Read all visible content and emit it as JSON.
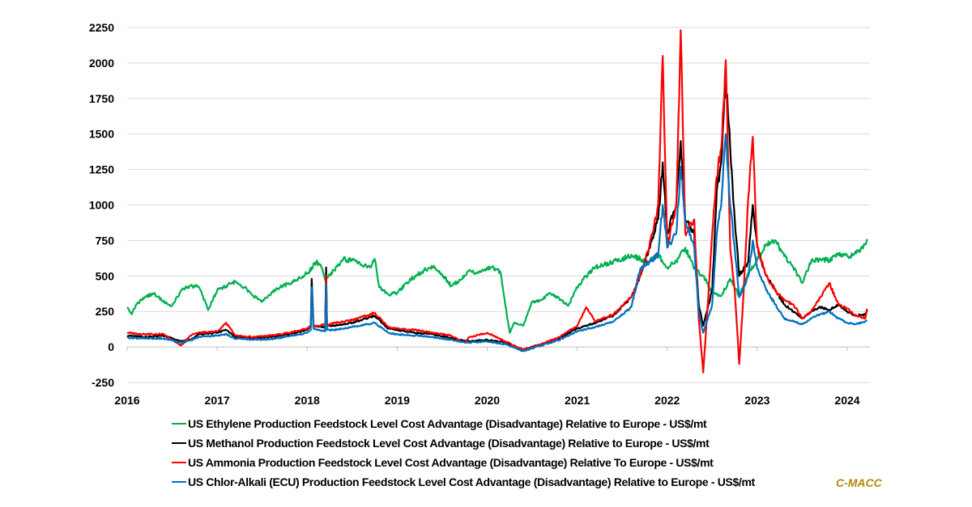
{
  "chart_data": {
    "type": "line",
    "title": "",
    "xlabel": "",
    "ylabel": "",
    "xlim": [
      2016,
      2024.25
    ],
    "ylim": [
      -250,
      2250
    ],
    "grid": true,
    "legend_placement": "bottom",
    "x_ticks": [
      "2016",
      "2017",
      "2018",
      "2019",
      "2020",
      "2021",
      "2022",
      "2023",
      "2024"
    ],
    "y_ticks": [
      "-250",
      "0",
      "250",
      "500",
      "750",
      "1000",
      "1250",
      "1500",
      "1750",
      "2000",
      "2250"
    ],
    "series": [
      {
        "name": "US Ethylene Production Feedstock Level Cost Advantage (Disadvantage) Relative to Europe - US$/mt",
        "color": "#00B050",
        "x": [
          2016.0,
          2016.05,
          2016.1,
          2016.2,
          2016.3,
          2016.4,
          2016.5,
          2016.6,
          2016.7,
          2016.8,
          2016.9,
          2017.0,
          2017.1,
          2017.2,
          2017.3,
          2017.4,
          2017.5,
          2017.6,
          2017.7,
          2017.8,
          2017.9,
          2018.0,
          2018.1,
          2018.15,
          2018.2,
          2018.3,
          2018.4,
          2018.5,
          2018.6,
          2018.7,
          2018.75,
          2018.8,
          2018.9,
          2019.0,
          2019.1,
          2019.2,
          2019.3,
          2019.4,
          2019.5,
          2019.6,
          2019.7,
          2019.8,
          2019.9,
          2020.0,
          2020.1,
          2020.15,
          2020.2,
          2020.25,
          2020.3,
          2020.4,
          2020.5,
          2020.6,
          2020.7,
          2020.8,
          2020.9,
          2021.0,
          2021.1,
          2021.2,
          2021.3,
          2021.4,
          2021.5,
          2021.6,
          2021.7,
          2021.8,
          2021.9,
          2022.0,
          2022.1,
          2022.2,
          2022.3,
          2022.4,
          2022.5,
          2022.6,
          2022.7,
          2022.8,
          2022.9,
          2023.0,
          2023.1,
          2023.2,
          2023.3,
          2023.4,
          2023.5,
          2023.6,
          2023.7,
          2023.8,
          2023.9,
          2024.0,
          2024.1,
          2024.2,
          2024.22
        ],
        "values": [
          280,
          230,
          300,
          350,
          380,
          320,
          290,
          400,
          430,
          420,
          260,
          400,
          430,
          460,
          420,
          360,
          320,
          380,
          420,
          450,
          480,
          520,
          600,
          580,
          470,
          540,
          620,
          610,
          580,
          560,
          620,
          420,
          370,
          380,
          450,
          500,
          540,
          560,
          510,
          430,
          470,
          540,
          520,
          560,
          550,
          520,
          300,
          100,
          170,
          150,
          320,
          330,
          380,
          340,
          290,
          420,
          500,
          560,
          580,
          600,
          620,
          650,
          620,
          600,
          650,
          560,
          600,
          700,
          550,
          500,
          380,
          360,
          480,
          360,
          520,
          610,
          720,
          750,
          640,
          560,
          450,
          600,
          620,
          610,
          650,
          640,
          660,
          720,
          760
        ]
      },
      {
        "name": "US Methanol Production Feedstock Level Cost Advantage (Disadvantage) Relative to Europe - US$/mt",
        "color": "#000000",
        "x": [
          2016.0,
          2016.2,
          2016.4,
          2016.6,
          2016.7,
          2016.8,
          2017.0,
          2017.1,
          2017.2,
          2017.4,
          2017.6,
          2017.8,
          2018.0,
          2018.04,
          2018.05,
          2018.07,
          2018.2,
          2018.21,
          2018.22,
          2018.3,
          2018.5,
          2018.75,
          2018.9,
          2019.0,
          2019.2,
          2019.4,
          2019.6,
          2019.8,
          2020.0,
          2020.2,
          2020.4,
          2020.6,
          2020.8,
          2021.0,
          2021.2,
          2021.4,
          2021.6,
          2021.7,
          2021.8,
          2021.9,
          2021.95,
          2022.0,
          2022.1,
          2022.15,
          2022.2,
          2022.3,
          2022.35,
          2022.4,
          2022.5,
          2022.55,
          2022.6,
          2022.65,
          2022.7,
          2022.75,
          2022.8,
          2022.9,
          2022.95,
          2023.0,
          2023.1,
          2023.2,
          2023.3,
          2023.4,
          2023.5,
          2023.6,
          2023.7,
          2023.8,
          2023.9,
          2024.0,
          2024.1,
          2024.2,
          2024.22
        ],
        "values": [
          80,
          70,
          80,
          40,
          50,
          90,
          100,
          120,
          70,
          60,
          70,
          90,
          120,
          150,
          480,
          150,
          140,
          560,
          150,
          150,
          170,
          220,
          130,
          120,
          100,
          90,
          60,
          40,
          50,
          30,
          -20,
          20,
          60,
          130,
          170,
          220,
          350,
          500,
          700,
          900,
          1300,
          800,
          1000,
          1450,
          900,
          800,
          300,
          150,
          400,
          1100,
          1300,
          1900,
          1400,
          900,
          500,
          600,
          1000,
          700,
          500,
          400,
          300,
          250,
          200,
          250,
          280,
          260,
          300,
          250,
          220,
          230,
          260
        ]
      },
      {
        "name": "US Ammonia Production Feedstock Level Cost Advantage (Disadvantage) Relative To Europe - US$/mt",
        "color": "#FF0000",
        "x": [
          2016.0,
          2016.2,
          2016.4,
          2016.6,
          2016.7,
          2016.8,
          2017.0,
          2017.1,
          2017.2,
          2017.4,
          2017.6,
          2017.8,
          2018.0,
          2018.04,
          2018.05,
          2018.07,
          2018.2,
          2018.21,
          2018.22,
          2018.3,
          2018.5,
          2018.75,
          2018.9,
          2019.0,
          2019.2,
          2019.4,
          2019.6,
          2019.75,
          2019.8,
          2020.0,
          2020.2,
          2020.4,
          2020.6,
          2020.8,
          2021.0,
          2021.1,
          2021.2,
          2021.4,
          2021.6,
          2021.7,
          2021.8,
          2021.9,
          2021.95,
          2022.0,
          2022.1,
          2022.15,
          2022.2,
          2022.3,
          2022.35,
          2022.4,
          2022.45,
          2022.5,
          2022.55,
          2022.6,
          2022.65,
          2022.7,
          2022.75,
          2022.8,
          2022.85,
          2022.9,
          2022.95,
          2023.0,
          2023.1,
          2023.2,
          2023.3,
          2023.4,
          2023.5,
          2023.6,
          2023.7,
          2023.8,
          2023.9,
          2024.0,
          2024.1,
          2024.2,
          2024.22
        ],
        "values": [
          100,
          90,
          90,
          10,
          80,
          100,
          110,
          170,
          80,
          70,
          80,
          100,
          130,
          150,
          400,
          140,
          160,
          500,
          150,
          170,
          190,
          240,
          140,
          130,
          120,
          100,
          80,
          30,
          70,
          100,
          40,
          -20,
          20,
          70,
          150,
          280,
          180,
          230,
          350,
          500,
          700,
          1000,
          2050,
          700,
          1000,
          2230,
          800,
          900,
          200,
          -180,
          300,
          800,
          1200,
          1400,
          2020,
          700,
          400,
          -120,
          400,
          1050,
          1480,
          700,
          500,
          400,
          330,
          300,
          200,
          250,
          350,
          450,
          300,
          270,
          220,
          200,
          270
        ]
      },
      {
        "name": "US Chlor-Alkali (ECU) Production Feedstock Level Cost Advantage (Disadvantage) Relative to Europe - US$/mt",
        "color": "#0070C0",
        "x": [
          2016.0,
          2016.2,
          2016.4,
          2016.6,
          2016.7,
          2016.8,
          2017.0,
          2017.1,
          2017.2,
          2017.4,
          2017.6,
          2017.8,
          2018.0,
          2018.04,
          2018.05,
          2018.07,
          2018.2,
          2018.21,
          2018.22,
          2018.3,
          2018.5,
          2018.75,
          2018.9,
          2019.0,
          2019.2,
          2019.4,
          2019.6,
          2019.8,
          2020.0,
          2020.2,
          2020.4,
          2020.6,
          2020.8,
          2021.0,
          2021.2,
          2021.4,
          2021.6,
          2021.7,
          2021.8,
          2021.9,
          2021.95,
          2022.0,
          2022.1,
          2022.15,
          2022.2,
          2022.3,
          2022.35,
          2022.4,
          2022.5,
          2022.55,
          2022.6,
          2022.65,
          2022.7,
          2022.75,
          2022.8,
          2022.9,
          2022.95,
          2023.0,
          2023.1,
          2023.2,
          2023.3,
          2023.4,
          2023.5,
          2023.6,
          2023.7,
          2023.8,
          2023.9,
          2024.0,
          2024.1,
          2024.2,
          2024.22
        ],
        "values": [
          65,
          60,
          60,
          30,
          45,
          70,
          80,
          90,
          60,
          50,
          55,
          75,
          100,
          120,
          420,
          130,
          110,
          440,
          120,
          120,
          140,
          170,
          100,
          90,
          80,
          70,
          50,
          30,
          40,
          20,
          -30,
          10,
          50,
          110,
          140,
          180,
          280,
          550,
          600,
          650,
          1000,
          700,
          800,
          1270,
          900,
          700,
          250,
          100,
          300,
          800,
          1000,
          1500,
          1000,
          700,
          350,
          500,
          750,
          550,
          400,
          300,
          200,
          180,
          160,
          200,
          230,
          250,
          200,
          170,
          160,
          180,
          190
        ]
      }
    ]
  },
  "legend": [
    {
      "label": "US Ethylene Production Feedstock Level Cost Advantage (Disadvantage) Relative to Europe - US$/mt",
      "color": "#00B050"
    },
    {
      "label": "US Methanol Production Feedstock Level Cost Advantage (Disadvantage) Relative to Europe - US$/mt",
      "color": "#000000"
    },
    {
      "label": "US Ammonia Production Feedstock Level Cost Advantage (Disadvantage) Relative To Europe - US$/mt",
      "color": "#FF0000"
    },
    {
      "label": "US Chlor-Alkali (ECU) Production Feedstock Level Cost Advantage (Disadvantage) Relative to Europe - US$/mt",
      "color": "#0070C0"
    }
  ],
  "brand": {
    "text": "C-MACC",
    "color": "#B8860B"
  },
  "colors": {
    "grid": "#D9D9D9",
    "axis": "#BFBFBF"
  }
}
